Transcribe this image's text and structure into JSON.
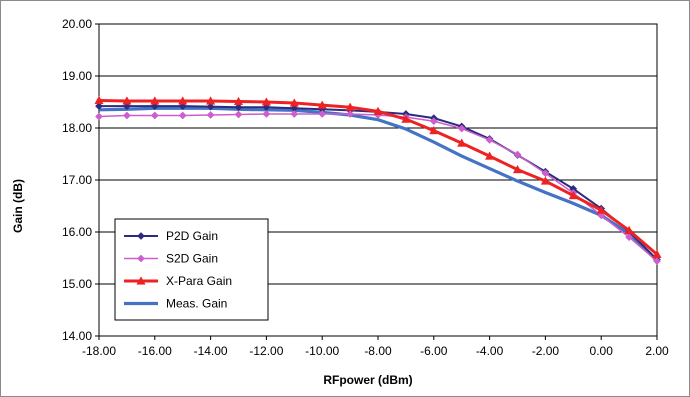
{
  "chart_data": {
    "type": "line",
    "title": "",
    "xlabel": "RFpower (dBm)",
    "ylabel": "Gain (dB)",
    "xlim": [
      -18,
      2
    ],
    "ylim": [
      14,
      20
    ],
    "x_ticks": [
      "-18.00",
      "-16.00",
      "-14.00",
      "-12.00",
      "-10.00",
      "-8.00",
      "-6.00",
      "-4.00",
      "-2.00",
      "0.00",
      "2.00"
    ],
    "y_ticks": [
      "14.00",
      "15.00",
      "16.00",
      "17.00",
      "18.00",
      "19.00",
      "20.00"
    ],
    "grid": "horizontal",
    "legend_position": "bottom-left",
    "series": [
      {
        "name": "P2D Gain",
        "color": "#2b2b80",
        "marker": "diamond",
        "x": [
          -18,
          -17,
          -16,
          -15,
          -14,
          -13,
          -12,
          -11,
          -10,
          -9,
          -8,
          -7,
          -6,
          -5,
          -4,
          -3,
          -2,
          -1,
          0,
          1,
          2
        ],
        "y": [
          18.42,
          18.42,
          18.42,
          18.42,
          18.41,
          18.4,
          18.4,
          18.38,
          18.36,
          18.34,
          18.31,
          18.27,
          18.19,
          18.03,
          17.79,
          17.48,
          17.16,
          16.83,
          16.45,
          16.01,
          15.47
        ]
      },
      {
        "name": "S2D Gain",
        "color": "#cc5fcc",
        "marker": "diamond",
        "x": [
          -18,
          -17,
          -16,
          -15,
          -14,
          -13,
          -12,
          -11,
          -10,
          -9,
          -8,
          -7,
          -6,
          -5,
          -4,
          -3,
          -2,
          -1,
          0,
          1,
          2
        ],
        "y": [
          18.22,
          18.24,
          18.24,
          18.24,
          18.25,
          18.26,
          18.27,
          18.27,
          18.27,
          18.27,
          18.25,
          18.21,
          18.13,
          17.99,
          17.77,
          17.49,
          17.13,
          16.75,
          16.32,
          15.9,
          15.44
        ]
      },
      {
        "name": "X-Para Gain",
        "color": "#ee2222",
        "marker": "triangle",
        "x": [
          -18,
          -17,
          -16,
          -15,
          -14,
          -13,
          -12,
          -11,
          -10,
          -9,
          -8,
          -7,
          -6,
          -5,
          -4,
          -3,
          -2,
          -1,
          0,
          1,
          2
        ],
        "y": [
          18.53,
          18.52,
          18.52,
          18.52,
          18.52,
          18.51,
          18.5,
          18.48,
          18.44,
          18.4,
          18.32,
          18.17,
          17.95,
          17.71,
          17.46,
          17.2,
          16.98,
          16.7,
          16.42,
          16.03,
          15.57
        ]
      },
      {
        "name": "Meas. Gain",
        "color": "#4472c4",
        "marker": "none",
        "x": [
          -18,
          -17,
          -16,
          -15,
          -14,
          -13,
          -12,
          -11,
          -10,
          -9,
          -8,
          -7,
          -6,
          -5,
          -4,
          -3,
          -2,
          -1,
          0,
          1,
          2
        ],
        "y": [
          18.35,
          18.36,
          18.38,
          18.38,
          18.38,
          18.36,
          18.35,
          18.34,
          18.3,
          18.25,
          18.16,
          17.98,
          17.73,
          17.46,
          17.22,
          16.98,
          16.76,
          16.55,
          16.32,
          15.97,
          15.45
        ]
      }
    ]
  }
}
